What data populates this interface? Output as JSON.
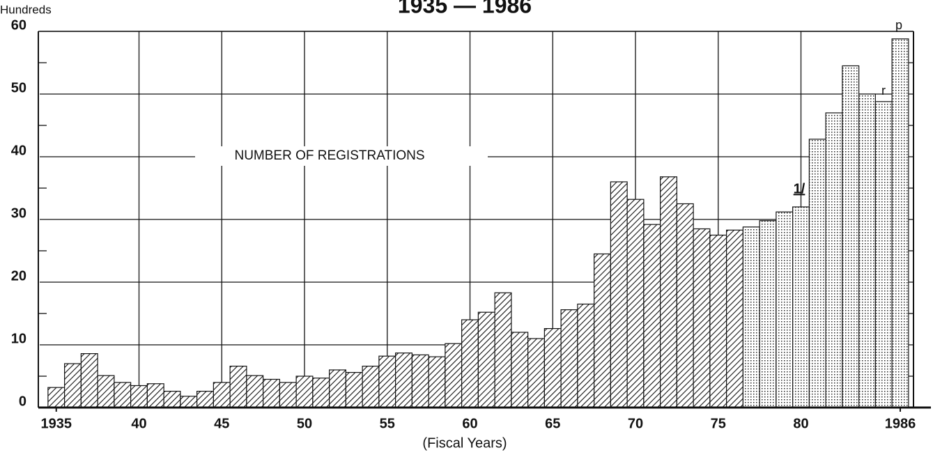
{
  "chart_data": {
    "type": "step-bar",
    "title": "1935 — 1986",
    "y_unit": "Hundreds",
    "x_label": "(Fiscal Years)",
    "annotations": [
      "NUMBER OF REGISTRATIONS",
      "1/",
      "r",
      "p"
    ],
    "series": [
      {
        "pattern": "hatch",
        "x": [
          1935,
          1936,
          1937,
          1938,
          1939,
          1940,
          1941,
          1942,
          1943,
          1944,
          1945,
          1946,
          1947,
          1948,
          1949,
          1950,
          1951,
          1952,
          1953,
          1954,
          1955,
          1956,
          1957,
          1958,
          1959,
          1960,
          1961,
          1962,
          1963,
          1964,
          1965,
          1966,
          1967,
          1968,
          1969,
          1970,
          1971,
          1972,
          1973,
          1974,
          1975,
          1976
        ],
        "values": [
          3.2,
          7.0,
          8.6,
          5.1,
          4.0,
          3.5,
          3.8,
          2.6,
          1.8,
          2.6,
          4.0,
          6.6,
          5.1,
          4.5,
          4.0,
          5.0,
          4.7,
          6.0,
          5.6,
          6.6,
          8.2,
          8.7,
          8.4,
          8.1,
          10.2,
          14.0,
          15.2,
          18.3,
          12.0,
          11.0,
          12.6,
          15.6,
          16.5,
          24.5,
          36.0,
          33.2,
          29.2,
          36.8,
          32.5,
          28.5,
          27.5,
          28.3
        ]
      },
      {
        "pattern": "dots",
        "x": [
          1977,
          1978,
          1979,
          1980,
          1981,
          1982,
          1983,
          1984,
          1985,
          1986
        ],
        "values": [
          28.8,
          29.8,
          31.2,
          32.0,
          42.8,
          47.0,
          54.5,
          50.0,
          48.8,
          58.8
        ]
      }
    ],
    "xlim": [
      1934,
      1986.8
    ],
    "xticks": [
      1935,
      {
        "value": 1940,
        "label": "40"
      },
      {
        "value": 1945,
        "label": "45"
      },
      {
        "value": 1950,
        "label": "50"
      },
      {
        "value": 1955,
        "label": "55"
      },
      {
        "value": 1960,
        "label": "60"
      },
      {
        "value": 1965,
        "label": "65"
      },
      {
        "value": 1970,
        "label": "70"
      },
      {
        "value": 1975,
        "label": "75"
      },
      {
        "value": 1980,
        "label": "80"
      },
      1986
    ],
    "ylim": [
      0,
      60
    ],
    "yticks": [
      0,
      10,
      20,
      30,
      40,
      50,
      60
    ],
    "grid": true
  }
}
